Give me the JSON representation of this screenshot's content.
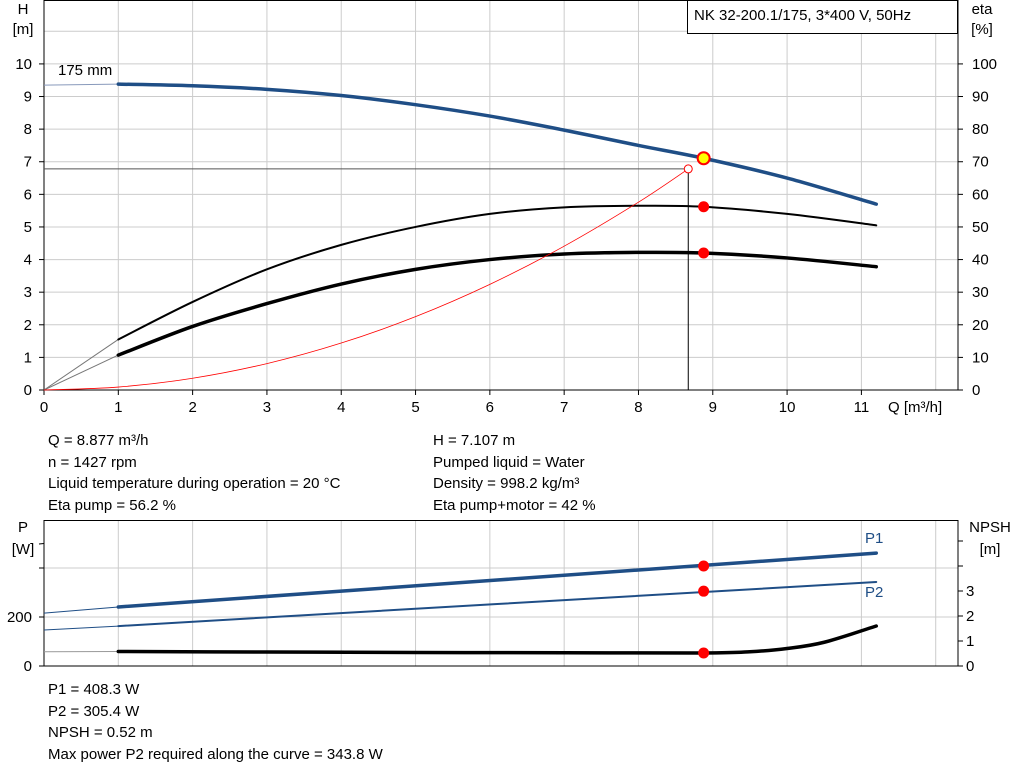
{
  "title": "NK 32-200.1/175, 3*400 V, 50Hz",
  "colors": {
    "head": "#1f4e86",
    "eta": "#000000",
    "system": "#ff0000",
    "point": "#ff0000",
    "duty_point": "#ffff00",
    "grid": "#cccccc"
  },
  "chart_data": [
    {
      "type": "line",
      "xlabel": "Q [m³/h]",
      "ylabel_left": [
        "H",
        "[m]"
      ],
      "ylabel_right": [
        "eta",
        "[%]"
      ],
      "xlim": [
        0,
        12.3
      ],
      "ylim_left": [
        0,
        11.96
      ],
      "ylim_right": [
        0,
        119.6
      ],
      "x_ticks": [
        "0",
        "1",
        "2",
        "3",
        "4",
        "5",
        "6",
        "7",
        "8",
        "9",
        "10",
        "11"
      ],
      "y_ticks_left": [
        "0",
        "1",
        "2",
        "3",
        "4",
        "5",
        "6",
        "7",
        "8",
        "9",
        "10"
      ],
      "y_ticks_right": [
        "0",
        "10",
        "20",
        "30",
        "40",
        "50",
        "60",
        "70",
        "80",
        "90",
        "100"
      ],
      "grid": true,
      "annotation": "175 mm",
      "series": [
        {
          "key": "head",
          "axis": "left",
          "x": [
            1,
            2,
            3,
            4,
            5,
            6,
            7,
            8,
            8.877,
            10,
            11.2
          ],
          "y": [
            9.38,
            9.33,
            9.22,
            9.03,
            8.75,
            8.4,
            7.97,
            7.5,
            7.107,
            6.5,
            5.7
          ],
          "extrapolated_from": [
            0,
            9.35
          ]
        },
        {
          "key": "eta_pump",
          "axis": "right",
          "x": [
            1,
            2,
            3,
            4,
            5,
            6,
            7,
            8,
            8.877,
            10,
            11.2
          ],
          "y": [
            15.5,
            27,
            37,
            44.5,
            50,
            54,
            56,
            56.5,
            56.2,
            54,
            50.5
          ],
          "extrapolated_from": [
            0,
            0
          ]
        },
        {
          "key": "eta_pump_motor",
          "axis": "right",
          "x": [
            1,
            2,
            3,
            4,
            5,
            6,
            7,
            8,
            8.877,
            10,
            11.2
          ],
          "y": [
            10.7,
            19.5,
            26.5,
            32.5,
            37,
            40,
            41.7,
            42.2,
            42,
            40.5,
            37.8
          ],
          "extrapolated_from": [
            0,
            0
          ]
        },
        {
          "key": "system",
          "axis": "left",
          "x": [
            0,
            1,
            2,
            3,
            4,
            5,
            6,
            7,
            8,
            8.67
          ],
          "y": [
            0,
            0.09,
            0.36,
            0.81,
            1.44,
            2.25,
            3.24,
            4.41,
            5.76,
            6.78
          ]
        }
      ],
      "duty_point": {
        "q": 8.877,
        "h": 7.107,
        "eta_pump": 56.2,
        "eta_total": 42
      },
      "system_point": {
        "q": 8.67,
        "h": 6.78
      }
    },
    {
      "type": "line",
      "ylabel_left": [
        "P",
        "[W]"
      ],
      "ylabel_right": [
        "NPSH",
        "[m]"
      ],
      "xlim": [
        0,
        12.3
      ],
      "ylim_left": [
        0,
        596
      ],
      "ylim_right": [
        0,
        5.84
      ],
      "y_ticks_left": [
        "0",
        "200"
      ],
      "y_ticks_right": [
        "0",
        "1",
        "2",
        "3"
      ],
      "grid": true,
      "series": [
        {
          "key": "p1",
          "name": "P1",
          "axis": "left",
          "x": [
            1,
            11.2
          ],
          "y": [
            241,
            461
          ],
          "extrapolated_from": [
            0,
            216
          ]
        },
        {
          "key": "p2",
          "name": "P2",
          "axis": "left",
          "x": [
            1,
            11.2
          ],
          "y": [
            163,
            343
          ],
          "extrapolated_from": [
            0,
            147
          ]
        },
        {
          "key": "npsh",
          "axis": "right",
          "x": [
            1,
            3,
            5,
            7,
            8.877,
            9.5,
            10,
            10.5,
            11.2
          ],
          "y": [
            0.58,
            0.56,
            0.54,
            0.53,
            0.52,
            0.57,
            0.7,
            0.95,
            1.6
          ],
          "extrapolated_from": [
            0,
            0.57
          ]
        }
      ],
      "duty_point": {
        "q": 8.877,
        "p1": 408.3,
        "p2": 305.4,
        "npsh": 0.52
      }
    }
  ],
  "info_top_left": [
    "Q = 8.877 m³/h",
    "n = 1427 rpm",
    "Liquid temperature during operation = 20 °C",
    "Eta pump = 56.2 %"
  ],
  "info_top_right": [
    "H = 7.107 m",
    "Pumped liquid = Water",
    "Density = 998.2 kg/m³",
    "Eta pump+motor = 42 %"
  ],
  "info_bottom": [
    "P1 = 408.3 W",
    "P2 = 305.4 W",
    "NPSH = 0.52 m",
    "Max power P2 required along the curve = 343.8 W"
  ]
}
